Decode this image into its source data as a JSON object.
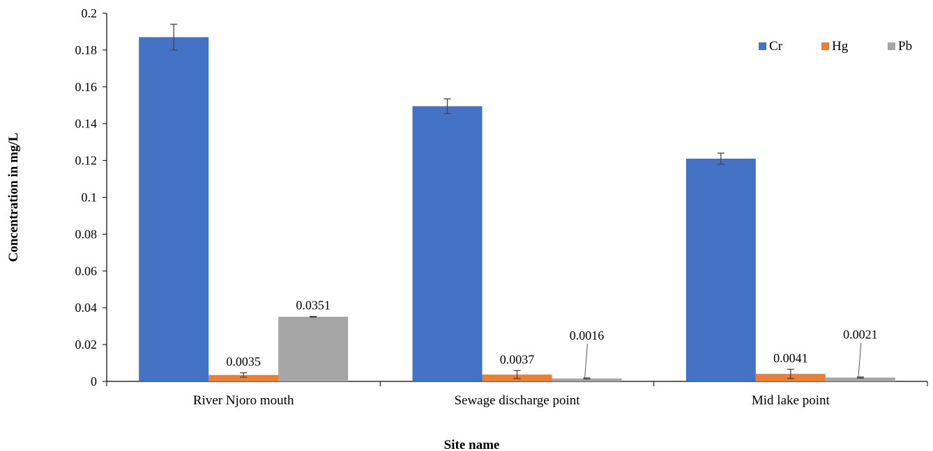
{
  "chart_data": {
    "type": "bar",
    "title": "",
    "xlabel": "Site name",
    "ylabel": "Concentration in mg/L",
    "ylim": [
      0,
      0.2
    ],
    "yticks": [
      "0",
      "0.02",
      "0.04",
      "0.06",
      "0.08",
      "0.1",
      "0.12",
      "0.14",
      "0.16",
      "0.18",
      "0.2"
    ],
    "categories": [
      "River Njoro mouth",
      "Sewage discharge point",
      "Mid lake point"
    ],
    "legend_position": "top-right",
    "grid": false,
    "series": [
      {
        "name": "Cr",
        "color": "#4472C4",
        "values": [
          0.187,
          0.1495,
          0.121
        ],
        "errors": [
          0.007,
          0.004,
          0.003
        ],
        "labels": [
          "",
          "",
          ""
        ]
      },
      {
        "name": "Hg",
        "color": "#ED7D31",
        "values": [
          0.0035,
          0.0037,
          0.0041
        ],
        "errors": [
          0.0012,
          0.0022,
          0.0025
        ],
        "labels": [
          "0.0035",
          "0.0037",
          "0.0041"
        ]
      },
      {
        "name": "Pb",
        "color": "#A5A5A5",
        "values": [
          0.0351,
          0.0016,
          0.0021
        ],
        "errors": [
          0.0002,
          0.0003,
          0.0003
        ],
        "labels": [
          "0.0351",
          "0.0016",
          "0.0021"
        ]
      }
    ]
  }
}
